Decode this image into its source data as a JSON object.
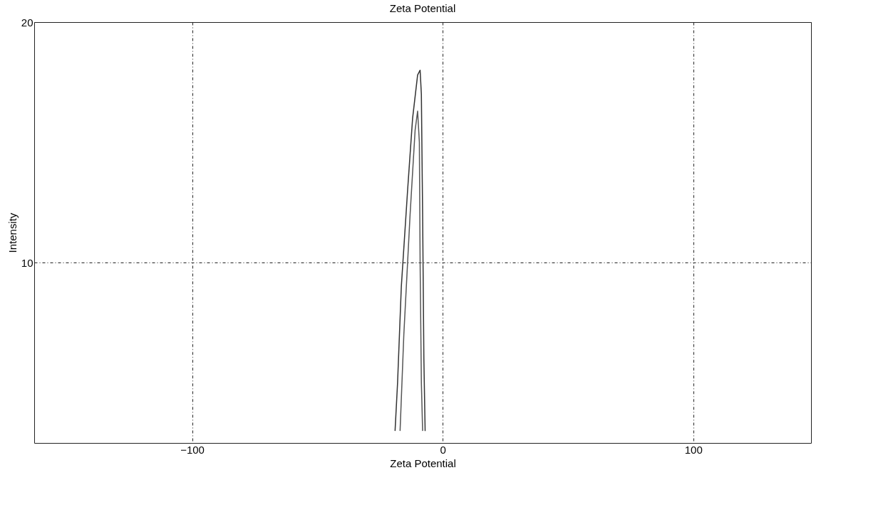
{
  "chart_data": {
    "type": "line",
    "title": "Zeta Potential",
    "xlabel": "Zeta Potential",
    "ylabel": "Intensity",
    "xlim": [
      -163,
      147
    ],
    "xticks": [
      -100,
      0,
      100
    ],
    "ylim": [
      2.5,
      20
    ],
    "yticks": [
      10,
      20
    ],
    "grid": true,
    "legend": false,
    "marker": "none",
    "line_style": "solid",
    "series": [
      {
        "color": "#333333",
        "x": [
          -19,
          -18,
          -16.5,
          -14,
          -12,
          -10,
          -9,
          -8.5,
          -8,
          -7.5,
          -7
        ],
        "values": [
          3,
          5,
          9,
          13,
          16,
          17.8,
          18,
          17,
          12,
          6,
          3
        ]
      },
      {
        "color": "#555555",
        "x": [
          -17,
          -15.5,
          -13,
          -11,
          -10,
          -9.3,
          -9,
          -8.5,
          -8
        ],
        "values": [
          3,
          7,
          12,
          15.5,
          16.3,
          15,
          10,
          5,
          3
        ]
      }
    ]
  }
}
